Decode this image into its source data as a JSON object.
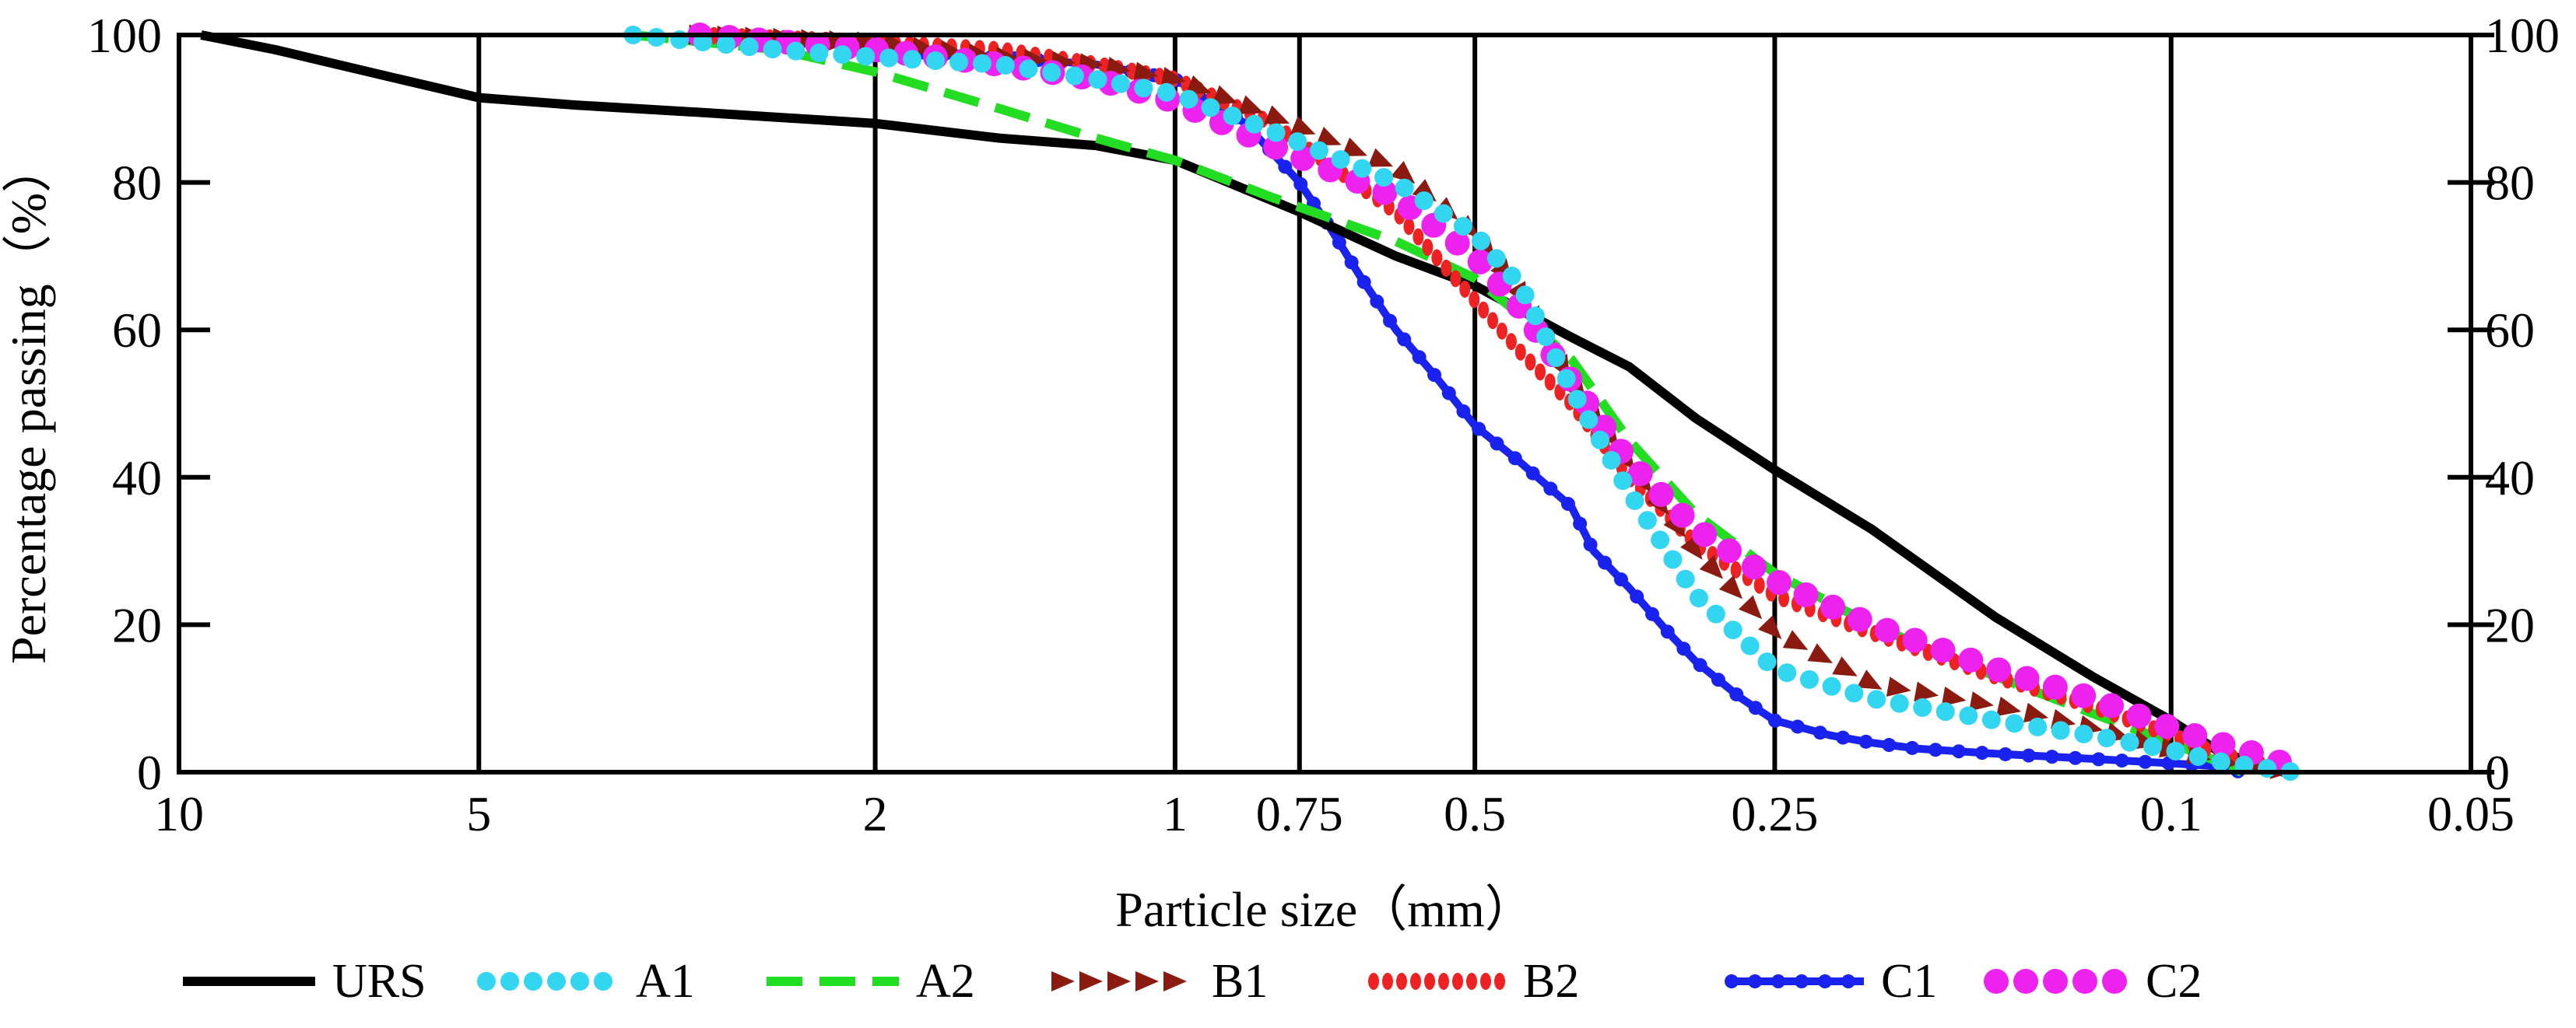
{
  "chart_data": {
    "type": "line",
    "title": "",
    "xlabel": "Particle size（mm）",
    "ylabel": "Percentage passing（%）",
    "xscale": "log-reversed",
    "xlim": [
      10,
      0.05
    ],
    "ylim": [
      0,
      100
    ],
    "x_ticks": [
      10,
      5,
      2,
      1,
      0.75,
      0.5,
      0.25,
      0.1,
      0.05
    ],
    "x_tick_labels": [
      "10",
      "5",
      "2",
      "1",
      "0.75",
      "0.5",
      "0.25",
      "0.1",
      "0.05"
    ],
    "vertical_gridlines_at": [
      5,
      2,
      1,
      0.75,
      0.5,
      0.25,
      0.1
    ],
    "y_ticks": [
      0,
      20,
      40,
      60,
      80,
      100
    ],
    "y_tick_labels": [
      "0",
      "20",
      "40",
      "60",
      "80",
      "100"
    ],
    "legend_position": "bottom",
    "series": [
      {
        "name": "URS",
        "color": "#000000",
        "style": "solid",
        "points": [
          [
            9.5,
            100
          ],
          [
            8,
            98
          ],
          [
            6,
            94
          ],
          [
            5,
            91.5
          ],
          [
            4,
            90.5
          ],
          [
            3,
            89.5
          ],
          [
            2,
            88
          ],
          [
            1.5,
            86
          ],
          [
            1.2,
            85
          ],
          [
            1,
            83
          ],
          [
            0.75,
            76
          ],
          [
            0.6,
            70
          ],
          [
            0.5,
            66
          ],
          [
            0.4,
            59
          ],
          [
            0.35,
            55
          ],
          [
            0.3,
            48
          ],
          [
            0.25,
            41
          ],
          [
            0.2,
            33
          ],
          [
            0.15,
            21
          ],
          [
            0.12,
            13
          ],
          [
            0.1,
            7
          ],
          [
            0.09,
            3
          ],
          [
            0.08,
            0.5
          ],
          [
            0.077,
            0
          ]
        ]
      },
      {
        "name": "A1",
        "color": "#33d6f0",
        "style": "dotted-circles",
        "points": [
          [
            3.5,
            100
          ],
          [
            2.5,
            98
          ],
          [
            2,
            97
          ],
          [
            1.5,
            96
          ],
          [
            1.2,
            94
          ],
          [
            1,
            92
          ],
          [
            0.8,
            87
          ],
          [
            0.6,
            80
          ],
          [
            0.5,
            73
          ],
          [
            0.45,
            66
          ],
          [
            0.4,
            52
          ],
          [
            0.35,
            38
          ],
          [
            0.3,
            24
          ],
          [
            0.25,
            14
          ],
          [
            0.2,
            10
          ],
          [
            0.15,
            7
          ],
          [
            0.12,
            5
          ],
          [
            0.1,
            3
          ],
          [
            0.09,
            1.5
          ],
          [
            0.08,
            0.5
          ],
          [
            0.075,
            0
          ]
        ]
      },
      {
        "name": "A2",
        "color": "#22dd22",
        "style": "dashed",
        "points": [
          [
            3.5,
            100
          ],
          [
            2.5,
            98
          ],
          [
            2,
            95
          ],
          [
            1.5,
            90
          ],
          [
            1.2,
            86
          ],
          [
            1,
            83
          ],
          [
            0.8,
            78
          ],
          [
            0.6,
            72
          ],
          [
            0.5,
            67
          ],
          [
            0.45,
            62
          ],
          [
            0.4,
            56
          ],
          [
            0.35,
            45
          ],
          [
            0.3,
            35
          ],
          [
            0.25,
            27
          ],
          [
            0.2,
            20
          ],
          [
            0.15,
            13
          ],
          [
            0.12,
            8
          ],
          [
            0.1,
            4
          ],
          [
            0.09,
            1.5
          ],
          [
            0.085,
            0
          ]
        ]
      },
      {
        "name": "B1",
        "color": "#8b1a10",
        "style": "triangles",
        "points": [
          [
            3,
            100
          ],
          [
            2,
            99
          ],
          [
            1.5,
            97
          ],
          [
            1.2,
            96
          ],
          [
            1,
            94
          ],
          [
            0.8,
            89
          ],
          [
            0.6,
            82
          ],
          [
            0.5,
            73
          ],
          [
            0.45,
            65
          ],
          [
            0.4,
            53
          ],
          [
            0.35,
            42
          ],
          [
            0.3,
            30
          ],
          [
            0.25,
            19
          ],
          [
            0.2,
            12
          ],
          [
            0.15,
            9
          ],
          [
            0.12,
            6
          ],
          [
            0.1,
            3
          ],
          [
            0.09,
            1.5
          ],
          [
            0.08,
            0.5
          ],
          [
            0.075,
            0
          ]
        ]
      },
      {
        "name": "B2",
        "color": "#ee2222",
        "style": "dense-dots",
        "points": [
          [
            3,
            100
          ],
          [
            2,
            99
          ],
          [
            1.5,
            98
          ],
          [
            1.2,
            96
          ],
          [
            1,
            94
          ],
          [
            0.8,
            88
          ],
          [
            0.6,
            76
          ],
          [
            0.5,
            64
          ],
          [
            0.45,
            57
          ],
          [
            0.4,
            50
          ],
          [
            0.35,
            40
          ],
          [
            0.3,
            31
          ],
          [
            0.25,
            24
          ],
          [
            0.2,
            19
          ],
          [
            0.15,
            13
          ],
          [
            0.12,
            9
          ],
          [
            0.1,
            5
          ],
          [
            0.09,
            2.5
          ],
          [
            0.08,
            1
          ],
          [
            0.075,
            0
          ]
        ]
      },
      {
        "name": "C1",
        "color": "#1a22ee",
        "style": "solid-markers",
        "points": [
          [
            2,
            98
          ],
          [
            1.5,
            97
          ],
          [
            1.2,
            96
          ],
          [
            1,
            94
          ],
          [
            0.85,
            88
          ],
          [
            0.75,
            80
          ],
          [
            0.7,
            74
          ],
          [
            0.65,
            67
          ],
          [
            0.6,
            60
          ],
          [
            0.55,
            54
          ],
          [
            0.5,
            47
          ],
          [
            0.45,
            42
          ],
          [
            0.4,
            36
          ],
          [
            0.38,
            30
          ],
          [
            0.35,
            25
          ],
          [
            0.32,
            19
          ],
          [
            0.3,
            15
          ],
          [
            0.27,
            10
          ],
          [
            0.25,
            7
          ],
          [
            0.22,
            5
          ],
          [
            0.2,
            4
          ],
          [
            0.18,
            3.2
          ],
          [
            0.15,
            2.5
          ],
          [
            0.12,
            1.8
          ],
          [
            0.1,
            1.2
          ],
          [
            0.09,
            0.8
          ],
          [
            0.085,
            0
          ]
        ]
      },
      {
        "name": "C2",
        "color": "#ee22ee",
        "style": "big-dots",
        "points": [
          [
            3,
            100
          ],
          [
            2,
            98
          ],
          [
            1.5,
            96
          ],
          [
            1.2,
            94
          ],
          [
            1,
            91
          ],
          [
            0.8,
            85
          ],
          [
            0.6,
            78
          ],
          [
            0.5,
            70
          ],
          [
            0.45,
            63
          ],
          [
            0.4,
            53
          ],
          [
            0.35,
            42
          ],
          [
            0.3,
            33
          ],
          [
            0.25,
            26
          ],
          [
            0.2,
            20
          ],
          [
            0.15,
            14
          ],
          [
            0.12,
            10
          ],
          [
            0.1,
            6
          ],
          [
            0.09,
            4
          ],
          [
            0.08,
            2
          ],
          [
            0.075,
            0.5
          ]
        ]
      }
    ]
  }
}
